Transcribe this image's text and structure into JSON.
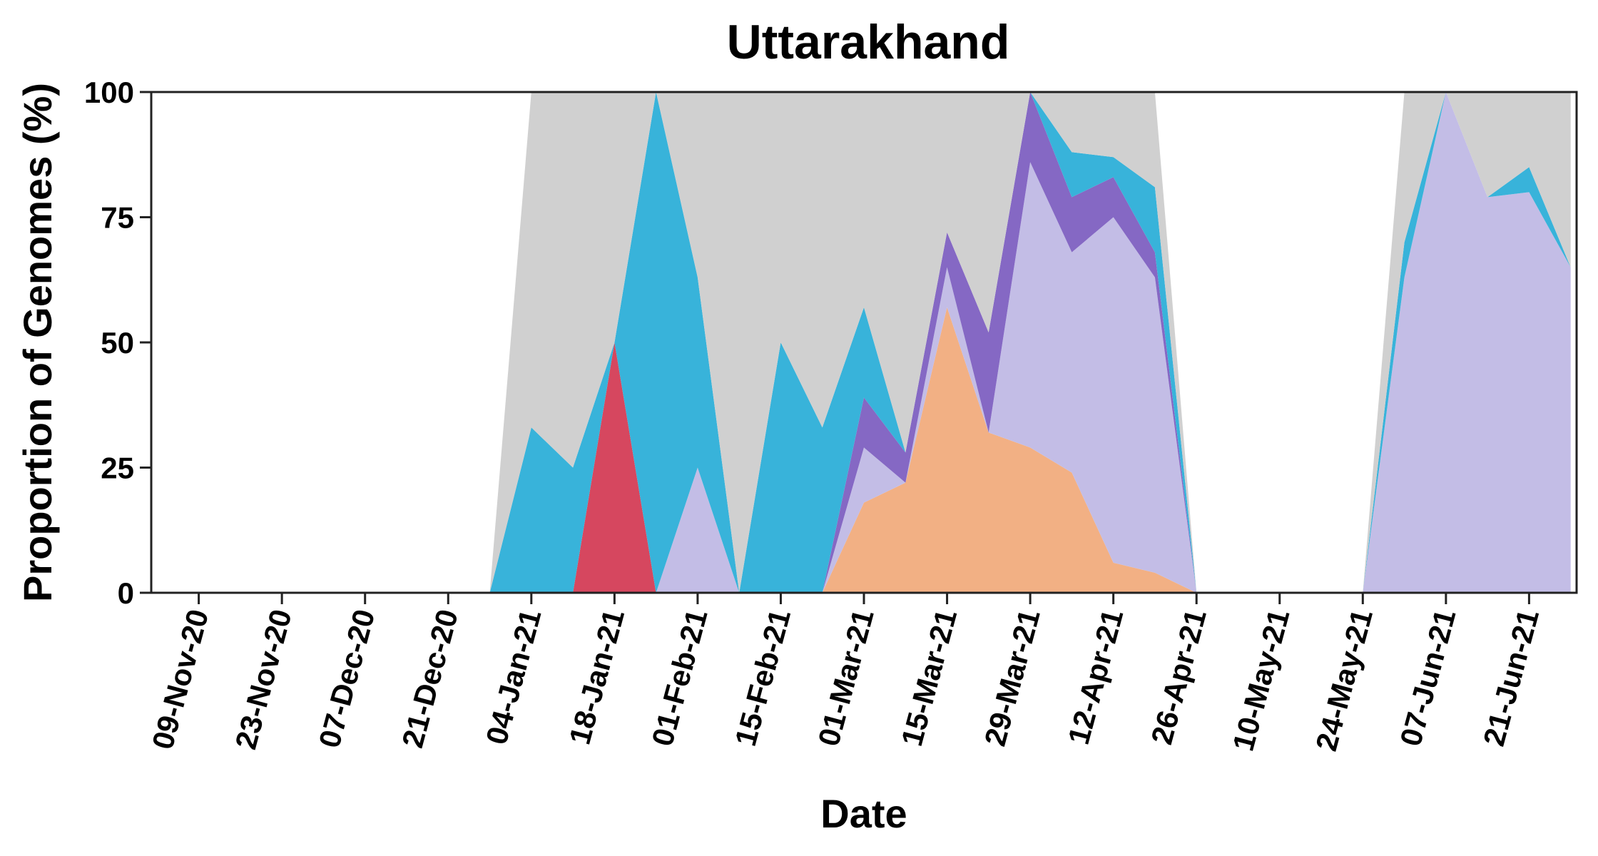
{
  "chart_data": {
    "type": "area",
    "title": "Uttarakhand",
    "xlabel": "Date",
    "ylabel": "Proportion of Genomes (%)",
    "ylim": [
      0,
      100
    ],
    "yticks": [
      "0",
      "25",
      "50",
      "75",
      "100"
    ],
    "xtick_labels": [
      "09-Nov-20",
      "23-Nov-20",
      "07-Dec-20",
      "21-Dec-20",
      "04-Jan-21",
      "18-Jan-21",
      "01-Feb-21",
      "15-Feb-21",
      "01-Mar-21",
      "15-Mar-21",
      "29-Mar-21",
      "12-Apr-21",
      "26-Apr-21",
      "10-May-21",
      "24-May-21",
      "07-Jun-21",
      "21-Jun-21"
    ],
    "grid": false,
    "legend": "none",
    "x": [
      "02-Nov-20",
      "09-Nov-20",
      "16-Nov-20",
      "23-Nov-20",
      "30-Nov-20",
      "07-Dec-20",
      "14-Dec-20",
      "21-Dec-20",
      "28-Dec-20",
      "04-Jan-21",
      "11-Jan-21",
      "18-Jan-21",
      "25-Jan-21",
      "01-Feb-21",
      "08-Feb-21",
      "15-Feb-21",
      "22-Feb-21",
      "01-Mar-21",
      "08-Mar-21",
      "15-Mar-21",
      "22-Mar-21",
      "29-Mar-21",
      "05-Apr-21",
      "12-Apr-21",
      "19-Apr-21",
      "26-Apr-21",
      "03-May-21",
      "10-May-21",
      "17-May-21",
      "24-May-21",
      "31-May-21",
      "07-Jun-21",
      "14-Jun-21",
      "21-Jun-21",
      "28-Jun-21"
    ],
    "series": [
      {
        "color": "#f2b084",
        "values": [
          0,
          0,
          0,
          0,
          0,
          0,
          0,
          0,
          0,
          0,
          0,
          0,
          0,
          0,
          0,
          0,
          0,
          18,
          22,
          57,
          32,
          29,
          24,
          6,
          4,
          0,
          0,
          0,
          0,
          0,
          0,
          0,
          0,
          0,
          0
        ]
      },
      {
        "color": "#c3bde6",
        "values": [
          0,
          0,
          0,
          0,
          0,
          0,
          0,
          0,
          0,
          0,
          0,
          0,
          0,
          25,
          0,
          0,
          0,
          11,
          0,
          8,
          0,
          57,
          44,
          69,
          59,
          0,
          0,
          0,
          0,
          0,
          63,
          100,
          79,
          80,
          65
        ]
      },
      {
        "color": "#8568c4",
        "values": [
          0,
          0,
          0,
          0,
          0,
          0,
          0,
          0,
          0,
          0,
          0,
          0,
          0,
          0,
          0,
          0,
          0,
          10,
          6,
          7,
          20,
          14,
          11,
          8,
          5,
          0,
          0,
          0,
          0,
          0,
          0,
          0,
          0,
          0,
          0
        ]
      },
      {
        "color": "#d6475f",
        "values": [
          0,
          0,
          0,
          0,
          0,
          0,
          0,
          0,
          0,
          0,
          0,
          50,
          0,
          0,
          0,
          0,
          0,
          0,
          0,
          0,
          0,
          0,
          0,
          0,
          0,
          0,
          0,
          0,
          0,
          0,
          0,
          0,
          0,
          0,
          0
        ]
      },
      {
        "color": "#38b3da",
        "values": [
          0,
          0,
          0,
          0,
          0,
          0,
          0,
          0,
          0,
          33,
          25,
          0,
          100,
          38,
          0,
          50,
          33,
          18,
          0,
          0,
          0,
          0,
          9,
          4,
          13,
          0,
          0,
          0,
          0,
          0,
          7,
          0,
          0,
          5,
          0
        ]
      },
      {
        "color": "#d0d0d0",
        "values": [
          0,
          0,
          0,
          0,
          0,
          0,
          0,
          0,
          0,
          67,
          75,
          50,
          0,
          37,
          100,
          50,
          67,
          43,
          72,
          28,
          48,
          0,
          12,
          13,
          19,
          0,
          0,
          0,
          0,
          0,
          30,
          0,
          21,
          15,
          35
        ]
      }
    ]
  }
}
